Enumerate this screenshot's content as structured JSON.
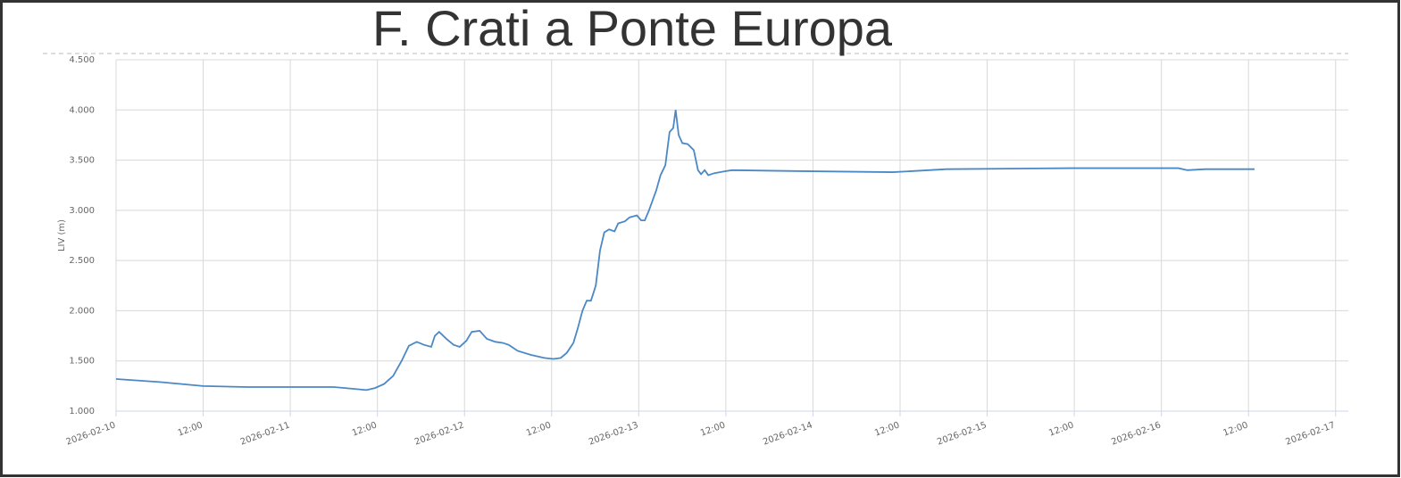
{
  "chart_data": {
    "type": "line",
    "title": "F. Crati a Ponte Europa",
    "y_label": "LIV (m)",
    "x": [
      "2026-02-10T00:00",
      "2026-02-10T06:00",
      "2026-02-10T12:00",
      "2026-02-10T18:00",
      "2026-02-11T00:00",
      "2026-02-11T06:00",
      "2026-02-11T10:30",
      "2026-02-11T11:40",
      "2026-02-11T12:55",
      "2026-02-11T14:10",
      "2026-02-11T15:20",
      "2026-02-11T16:20",
      "2026-02-11T17:25",
      "2026-02-11T18:25",
      "2026-02-11T19:25",
      "2026-02-11T19:55",
      "2026-02-11T20:30",
      "2026-02-11T21:30",
      "2026-02-11T22:30",
      "2026-02-11T23:20",
      "2026-02-12T00:15",
      "2026-02-12T01:00",
      "2026-02-12T02:05",
      "2026-02-12T03:05",
      "2026-02-12T04:15",
      "2026-02-12T05:15",
      "2026-02-12T06:05",
      "2026-02-12T07:20",
      "2026-02-12T09:10",
      "2026-02-12T11:00",
      "2026-02-12T12:15",
      "2026-02-12T13:15",
      "2026-02-12T14:05",
      "2026-02-12T15:00",
      "2026-02-12T15:35",
      "2026-02-12T16:15",
      "2026-02-12T16:50",
      "2026-02-12T17:25",
      "2026-02-12T18:05",
      "2026-02-12T18:40",
      "2026-02-12T19:15",
      "2026-02-12T19:55",
      "2026-02-12T20:40",
      "2026-02-12T21:10",
      "2026-02-12T22:05",
      "2026-02-12T22:45",
      "2026-02-12T23:45",
      "2026-02-13T00:20",
      "2026-02-13T00:50",
      "2026-02-13T01:25",
      "2026-02-13T02:25",
      "2026-02-13T03:00",
      "2026-02-13T03:40",
      "2026-02-13T04:15",
      "2026-02-13T04:45",
      "2026-02-13T05:05",
      "2026-02-13T05:30",
      "2026-02-13T06:00",
      "2026-02-13T06:45",
      "2026-02-13T07:35",
      "2026-02-13T08:10",
      "2026-02-13T08:35",
      "2026-02-13T09:05",
      "2026-02-13T09:35",
      "2026-02-13T10:25",
      "2026-02-13T11:55",
      "2026-02-13T12:50",
      "2026-02-13T22:45",
      "2026-02-14T11:00",
      "2026-02-14T18:25",
      "2026-02-15T11:35",
      "2026-02-16T02:20",
      "2026-02-16T03:35",
      "2026-02-16T06:05",
      "2026-02-16T12:50"
    ],
    "series": [
      {
        "name": "LIV",
        "color": "#4a88c6",
        "values": [
          1.32,
          1.29,
          1.25,
          1.24,
          1.24,
          1.24,
          1.21,
          1.23,
          1.27,
          1.35,
          1.5,
          1.65,
          1.69,
          1.66,
          1.64,
          1.75,
          1.79,
          1.72,
          1.66,
          1.64,
          1.7,
          1.79,
          1.8,
          1.72,
          1.69,
          1.68,
          1.66,
          1.6,
          1.56,
          1.53,
          1.52,
          1.53,
          1.58,
          1.68,
          1.82,
          2.0,
          2.1,
          2.1,
          2.25,
          2.6,
          2.78,
          2.81,
          2.79,
          2.87,
          2.89,
          2.93,
          2.95,
          2.9,
          2.9,
          3.0,
          3.2,
          3.35,
          3.45,
          3.78,
          3.82,
          4.0,
          3.75,
          3.67,
          3.66,
          3.6,
          3.4,
          3.36,
          3.4,
          3.35,
          3.37,
          3.39,
          3.4,
          3.39,
          3.38,
          3.41,
          3.42,
          3.42,
          3.4,
          3.41,
          3.41
        ]
      }
    ],
    "xlim": [
      "2026-02-10T00:00",
      "2026-02-17T01:45"
    ],
    "xticks": [
      {
        "value": "2026-02-10T00:00",
        "label": "2026-02-10"
      },
      {
        "value": "2026-02-10T12:00",
        "label": "12:00"
      },
      {
        "value": "2026-02-11T00:00",
        "label": "2026-02-11"
      },
      {
        "value": "2026-02-11T12:00",
        "label": "12:00"
      },
      {
        "value": "2026-02-12T00:00",
        "label": "2026-02-12"
      },
      {
        "value": "2026-02-12T12:00",
        "label": "12:00"
      },
      {
        "value": "2026-02-13T00:00",
        "label": "2026-02-13"
      },
      {
        "value": "2026-02-13T12:00",
        "label": "12:00"
      },
      {
        "value": "2026-02-14T00:00",
        "label": "2026-02-14"
      },
      {
        "value": "2026-02-14T12:00",
        "label": "12:00"
      },
      {
        "value": "2026-02-15T00:00",
        "label": "2026-02-15"
      },
      {
        "value": "2026-02-15T12:00",
        "label": "12:00"
      },
      {
        "value": "2026-02-16T00:00",
        "label": "2026-02-16"
      },
      {
        "value": "2026-02-16T12:00",
        "label": "12:00"
      },
      {
        "value": "2026-02-17T00:00",
        "label": "2026-02-17"
      }
    ],
    "ylim": [
      1,
      4.5
    ],
    "yticks": [
      {
        "value": 1,
        "label": "1.000"
      },
      {
        "value": 1.5,
        "label": "1.500"
      },
      {
        "value": 2,
        "label": "2.000"
      },
      {
        "value": 2.5,
        "label": "2.500"
      },
      {
        "value": 3,
        "label": "3.000"
      },
      {
        "value": 3.5,
        "label": "3.500"
      },
      {
        "value": 4,
        "label": "4.000"
      },
      {
        "value": 4.5,
        "label": "4.500"
      }
    ],
    "grid": true
  }
}
